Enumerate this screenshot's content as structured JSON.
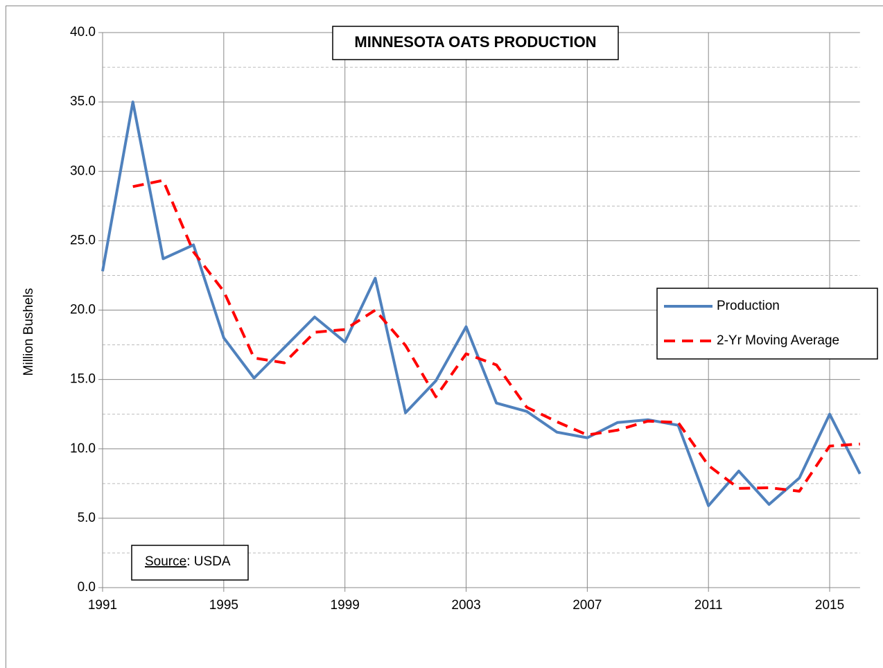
{
  "chart_data": {
    "type": "line",
    "title": "MINNESOTA OATS PRODUCTION",
    "y_label": "Million Bushels",
    "source": [
      "Source",
      ":  USDA"
    ],
    "x": [
      1991,
      1992,
      1993,
      1994,
      1995,
      1996,
      1997,
      1998,
      1999,
      2000,
      2001,
      2002,
      2003,
      2004,
      2005,
      2006,
      2007,
      2008,
      2009,
      2010,
      2011,
      2012,
      2013,
      2014,
      2015,
      2016
    ],
    "series": [
      {
        "name": "Production",
        "color": "#4f81bd",
        "dashed": false,
        "values": [
          22.8,
          35.0,
          23.7,
          24.7,
          18.0,
          15.1,
          17.3,
          19.5,
          17.7,
          22.3,
          12.6,
          14.9,
          18.8,
          13.3,
          12.7,
          11.2,
          10.8,
          11.9,
          12.1,
          11.7,
          5.9,
          8.4,
          6.0,
          7.9,
          12.5,
          8.2
        ]
      },
      {
        "name": "2-Yr Moving Average",
        "color": "#ff0000",
        "dashed": true,
        "values": [
          null,
          28.9,
          29.35,
          24.2,
          21.35,
          16.55,
          16.2,
          18.4,
          18.6,
          20.0,
          17.45,
          13.75,
          16.85,
          16.05,
          13.0,
          11.95,
          11.0,
          11.35,
          12.0,
          11.9,
          8.8,
          7.15,
          7.2,
          6.95,
          10.2,
          10.35
        ]
      }
    ],
    "xlim": [
      1991,
      2016
    ],
    "xticks": [
      1991,
      1995,
      1999,
      2003,
      2007,
      2011,
      2015
    ],
    "ylim": [
      0,
      40
    ],
    "yticks": [
      {
        "value": 0,
        "label": "0.0"
      },
      {
        "value": 5,
        "label": "5.0"
      },
      {
        "value": 10,
        "label": "10.0"
      },
      {
        "value": 15,
        "label": "15.0"
      },
      {
        "value": 20,
        "label": "20.0"
      },
      {
        "value": 25,
        "label": "25.0"
      },
      {
        "value": 30,
        "label": "30.0"
      },
      {
        "value": 35,
        "label": "35.0"
      },
      {
        "value": 40,
        "label": "40.0"
      }
    ],
    "grid": true,
    "legend": "right"
  }
}
